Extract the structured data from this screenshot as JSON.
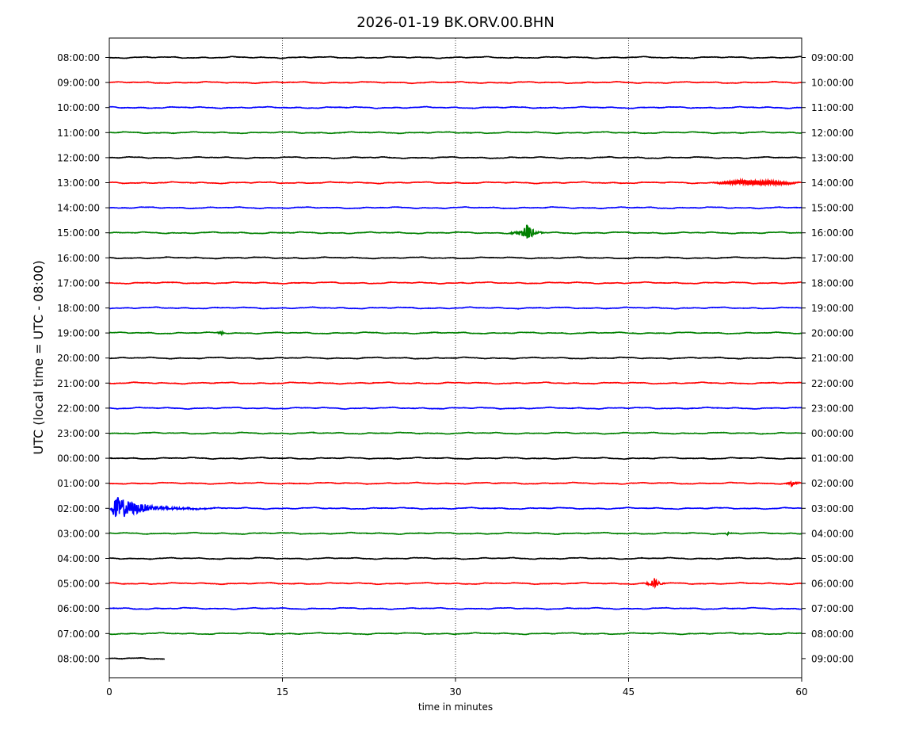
{
  "chart_data": {
    "type": "line",
    "title": "2026-01-19 BK.ORV.00.BHN",
    "xlabel": "time in minutes",
    "ylabel": "UTC (local time = UTC - 08:00)",
    "xlim": [
      0,
      60
    ],
    "x_ticks": [
      0,
      15,
      30,
      45,
      60
    ],
    "x_tick_labels": [
      "0",
      "15",
      "30",
      "45",
      "60"
    ],
    "vertical_grid": [
      15,
      30,
      45
    ],
    "grid_style": "dotted",
    "colors": [
      "#000000",
      "#ff0000",
      "#0000ff",
      "#008000"
    ],
    "left_labels": [
      "08:00:00",
      "09:00:00",
      "10:00:00",
      "11:00:00",
      "12:00:00",
      "13:00:00",
      "14:00:00",
      "15:00:00",
      "16:00:00",
      "17:00:00",
      "18:00:00",
      "19:00:00",
      "20:00:00",
      "21:00:00",
      "22:00:00",
      "23:00:00",
      "00:00:00",
      "01:00:00",
      "02:00:00",
      "03:00:00",
      "04:00:00",
      "05:00:00",
      "06:00:00",
      "07:00:00",
      "08:00:00"
    ],
    "right_labels": [
      "09:00:00",
      "10:00:00",
      "11:00:00",
      "12:00:00",
      "13:00:00",
      "14:00:00",
      "15:00:00",
      "16:00:00",
      "17:00:00",
      "18:00:00",
      "19:00:00",
      "20:00:00",
      "21:00:00",
      "22:00:00",
      "23:00:00",
      "00:00:00",
      "01:00:00",
      "02:00:00",
      "03:00:00",
      "04:00:00",
      "05:00:00",
      "06:00:00",
      "07:00:00",
      "08:00:00",
      "09:00:00"
    ],
    "traces": [
      {
        "end": 60,
        "events": []
      },
      {
        "end": 60,
        "events": []
      },
      {
        "end": 60,
        "events": []
      },
      {
        "end": 60,
        "events": []
      },
      {
        "end": 60,
        "events": []
      },
      {
        "end": 60,
        "events": [
          {
            "t": 56,
            "amp": 0.18,
            "dur": 8,
            "kind": "oscillation"
          }
        ]
      },
      {
        "end": 60,
        "events": []
      },
      {
        "end": 60,
        "events": [
          {
            "t": 36.2,
            "amp": 0.7,
            "dur": 1.5,
            "kind": "burst"
          }
        ]
      },
      {
        "end": 60,
        "events": []
      },
      {
        "end": 60,
        "events": []
      },
      {
        "end": 60,
        "events": []
      },
      {
        "end": 60,
        "events": [
          {
            "t": 9.7,
            "amp": 0.18,
            "dur": 0.5,
            "kind": "burst"
          }
        ]
      },
      {
        "end": 60,
        "events": []
      },
      {
        "end": 60,
        "events": []
      },
      {
        "end": 60,
        "events": []
      },
      {
        "end": 60,
        "events": []
      },
      {
        "end": 60,
        "events": []
      },
      {
        "end": 60,
        "events": [
          {
            "t": 59.2,
            "amp": 0.25,
            "dur": 0.8,
            "kind": "burst"
          }
        ]
      },
      {
        "end": 60,
        "events": [
          {
            "t": 0.5,
            "amp": 1.0,
            "dur": 7,
            "kind": "quake"
          }
        ]
      },
      {
        "end": 60,
        "events": [
          {
            "t": 53.6,
            "amp": 0.15,
            "dur": 0.4,
            "kind": "burst"
          }
        ]
      },
      {
        "end": 60,
        "events": []
      },
      {
        "end": 60,
        "events": [
          {
            "t": 47.2,
            "amp": 0.45,
            "dur": 1.0,
            "kind": "burst"
          }
        ]
      },
      {
        "end": 60,
        "events": []
      },
      {
        "end": 60,
        "events": []
      },
      {
        "end": 4.8,
        "events": []
      }
    ]
  }
}
